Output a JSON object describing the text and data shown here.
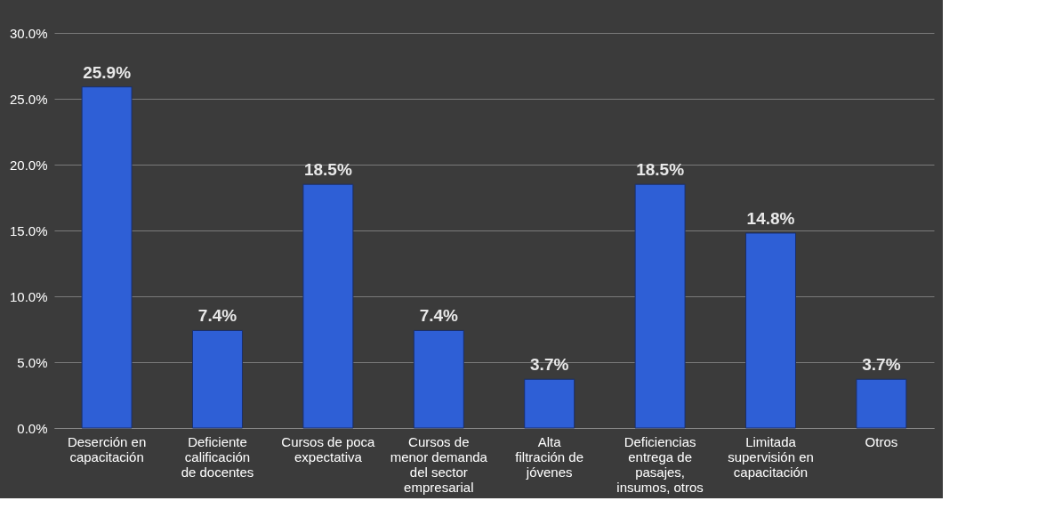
{
  "chart_data": {
    "type": "bar",
    "categories": [
      "Deserción en capacitación",
      "Deficiente calificación de docentes",
      "Cursos de poca expectativa",
      "Cursos de menor demanda del sector empresarial",
      "Alta filtración de jóvenes",
      "Deficiencias entrega de pasajes, insumos, otros",
      "Limitada supervisión en capacitación",
      "Otros"
    ],
    "values": [
      25.9,
      7.4,
      18.5,
      7.4,
      3.7,
      18.5,
      14.8,
      3.7
    ],
    "value_labels": [
      "25.9%",
      "7.4%",
      "18.5%",
      "7.4%",
      "3.7%",
      "18.5%",
      "14.8%",
      "3.7%"
    ],
    "color": "#2e5fd6",
    "ylim": [
      0,
      30
    ],
    "yticks": [
      {
        "value": 0,
        "label": "0.0%"
      },
      {
        "value": 5,
        "label": "5.0%"
      },
      {
        "value": 10,
        "label": "10.0%"
      },
      {
        "value": 15,
        "label": "15.0%"
      },
      {
        "value": 20,
        "label": "20.0%"
      },
      {
        "value": 25,
        "label": "25.0%"
      },
      {
        "value": 30,
        "label": "30.0%"
      }
    ],
    "grid": "y"
  }
}
